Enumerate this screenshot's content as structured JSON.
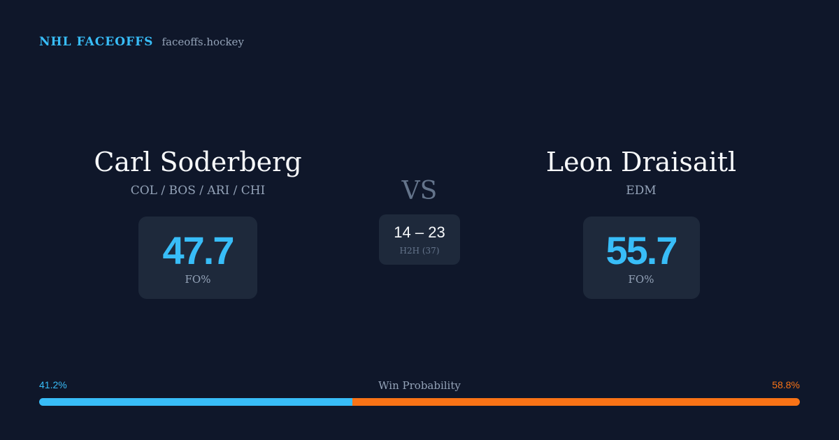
{
  "brand": {
    "name": "NHL FACEOFFS",
    "site": "faceoffs.hockey"
  },
  "player_left": {
    "name": "Carl Soderberg",
    "teams": "COL / BOS / ARI / CHI",
    "stat_value": "47.7",
    "stat_label": "FO%"
  },
  "player_right": {
    "name": "Leon Draisaitl",
    "teams": "EDM",
    "stat_value": "55.7",
    "stat_label": "FO%"
  },
  "versus": {
    "label": "VS",
    "h2h_score": "14 – 23",
    "h2h_label": "H2H (37)"
  },
  "win_probability": {
    "title": "Win Probability",
    "left_label": "41.2%",
    "right_label": "58.8%",
    "left_fraction": 0.412,
    "right_fraction": 0.588
  },
  "colors": {
    "background": "#0f172a",
    "card": "#1e293b",
    "accent_blue": "#38bdf8",
    "accent_orange": "#f97316",
    "muted_text": "#94a3b8"
  }
}
